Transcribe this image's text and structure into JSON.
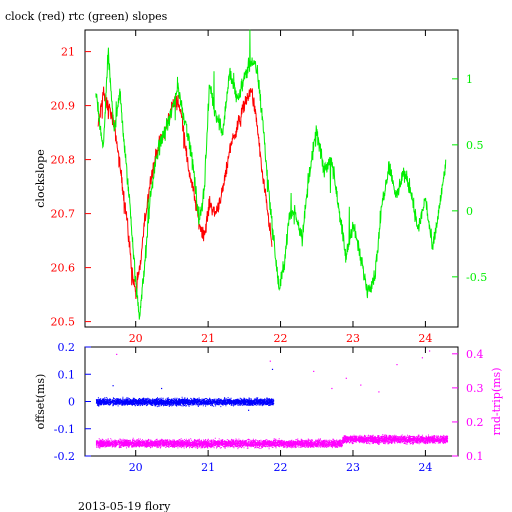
{
  "header": {
    "title": "clock (red) rtc (green) slopes"
  },
  "footer": {
    "caption": "2013-05-19 flory"
  },
  "colors": {
    "red": "#ff0000",
    "green": "#00ee00",
    "blue": "#0000ff",
    "magenta": "#ff00ff",
    "axis": "#000000"
  },
  "chart_data": [
    {
      "type": "line",
      "title": "clock (red) rtc (green) slopes",
      "ylabel": "clockslope",
      "xlim": [
        19.3,
        24.45
      ],
      "ylim": [
        20.49,
        21.04
      ],
      "y2lim": [
        -0.88,
        1.37
      ],
      "x_ticks": [
        "20",
        "21",
        "22",
        "23",
        "24"
      ],
      "y_ticks": [
        "20.5",
        "20.6",
        "20.7",
        "20.8",
        "20.9",
        "21"
      ],
      "y2_ticks": [
        "-0.5",
        "0",
        "0.5",
        "1"
      ],
      "series": [
        {
          "name": "clock",
          "color": "red",
          "axis": "left",
          "x": [
            19.48,
            19.55,
            19.65,
            19.72,
            19.8,
            19.88,
            19.95,
            20.0,
            20.06,
            20.12,
            20.2,
            20.3,
            20.4,
            20.5,
            20.58,
            20.65,
            20.72,
            20.8,
            20.88,
            20.95,
            21.02,
            21.1,
            21.2,
            21.3,
            21.4,
            21.5,
            21.6,
            21.68,
            21.75,
            21.82,
            21.88
          ],
          "y": [
            20.86,
            20.92,
            20.89,
            20.85,
            20.77,
            20.69,
            20.59,
            20.55,
            20.6,
            20.68,
            20.76,
            20.82,
            20.85,
            20.9,
            20.91,
            20.87,
            20.79,
            20.74,
            20.68,
            20.66,
            20.72,
            20.7,
            20.74,
            20.82,
            20.86,
            20.9,
            20.93,
            20.86,
            20.77,
            20.71,
            20.64
          ]
        },
        {
          "name": "rtc",
          "color": "green",
          "axis": "right",
          "x": [
            19.45,
            19.55,
            19.62,
            19.7,
            19.78,
            19.85,
            19.92,
            20.0,
            20.05,
            20.12,
            20.2,
            20.3,
            20.4,
            20.5,
            20.58,
            20.65,
            20.72,
            20.8,
            20.88,
            20.95,
            21.02,
            21.1,
            21.2,
            21.3,
            21.4,
            21.5,
            21.6,
            21.68,
            21.75,
            21.82,
            21.9,
            21.98,
            22.05,
            22.12,
            22.2,
            22.3,
            22.4,
            22.5,
            22.6,
            22.7,
            22.8,
            22.9,
            23.0,
            23.1,
            23.2,
            23.3,
            23.4,
            23.5,
            23.6,
            23.7,
            23.8,
            23.9,
            24.0,
            24.1,
            24.2,
            24.28
          ],
          "y": [
            0.9,
            0.45,
            1.2,
            0.6,
            0.9,
            0.45,
            0.05,
            -0.55,
            -0.8,
            -0.45,
            0.1,
            0.45,
            0.6,
            0.75,
            0.95,
            0.75,
            0.6,
            0.3,
            -0.1,
            0.2,
            0.95,
            0.75,
            0.6,
            1.05,
            0.85,
            1.0,
            1.15,
            1.05,
            0.7,
            0.25,
            -0.2,
            -0.6,
            -0.4,
            -0.05,
            0.0,
            -0.2,
            0.3,
            0.6,
            0.3,
            0.4,
            0.05,
            -0.35,
            -0.1,
            -0.35,
            -0.6,
            -0.5,
            0.05,
            0.35,
            0.1,
            0.3,
            0.15,
            -0.15,
            0.1,
            -0.3,
            0.05,
            0.35
          ]
        }
      ]
    },
    {
      "type": "scatter",
      "ylabel": "offset(ms)",
      "y2label": "rnd-trip(ms)",
      "xlim": [
        19.3,
        24.45
      ],
      "ylim": [
        -0.2,
        0.2
      ],
      "y2lim": [
        0.1,
        0.42
      ],
      "x_ticks": [
        "20",
        "21",
        "22",
        "23",
        "24"
      ],
      "y_ticks": [
        "-0.2",
        "-0.1",
        "0",
        "0.1",
        "0.2"
      ],
      "y2_ticks": [
        "0.1",
        "0.2",
        "0.3",
        "0.4"
      ],
      "series": [
        {
          "name": "offset",
          "color": "blue",
          "axis": "left",
          "x_range": [
            19.45,
            21.9
          ],
          "center": 0.0,
          "spread": 0.018,
          "outliers": [
            [
              19.68,
              0.06
            ],
            [
              20.35,
              0.05
            ],
            [
              21.55,
              -0.03
            ],
            [
              21.88,
              0.12
            ]
          ]
        },
        {
          "name": "rnd-trip",
          "color": "magenta",
          "axis": "right",
          "segments": [
            {
              "x_range": [
                19.45,
                22.85
              ],
              "center": 0.138,
              "spread": 0.016
            },
            {
              "x_range": [
                22.85,
                24.3
              ],
              "center": 0.15,
              "spread": 0.016
            }
          ],
          "outliers": [
            [
              19.73,
              0.4
            ],
            [
              21.85,
              0.38
            ],
            [
              22.45,
              0.35
            ],
            [
              22.9,
              0.33
            ],
            [
              23.1,
              0.31
            ],
            [
              23.6,
              0.37
            ],
            [
              23.95,
              0.39
            ],
            [
              24.05,
              0.41
            ],
            [
              22.7,
              0.3
            ],
            [
              23.35,
              0.29
            ]
          ]
        }
      ]
    }
  ]
}
